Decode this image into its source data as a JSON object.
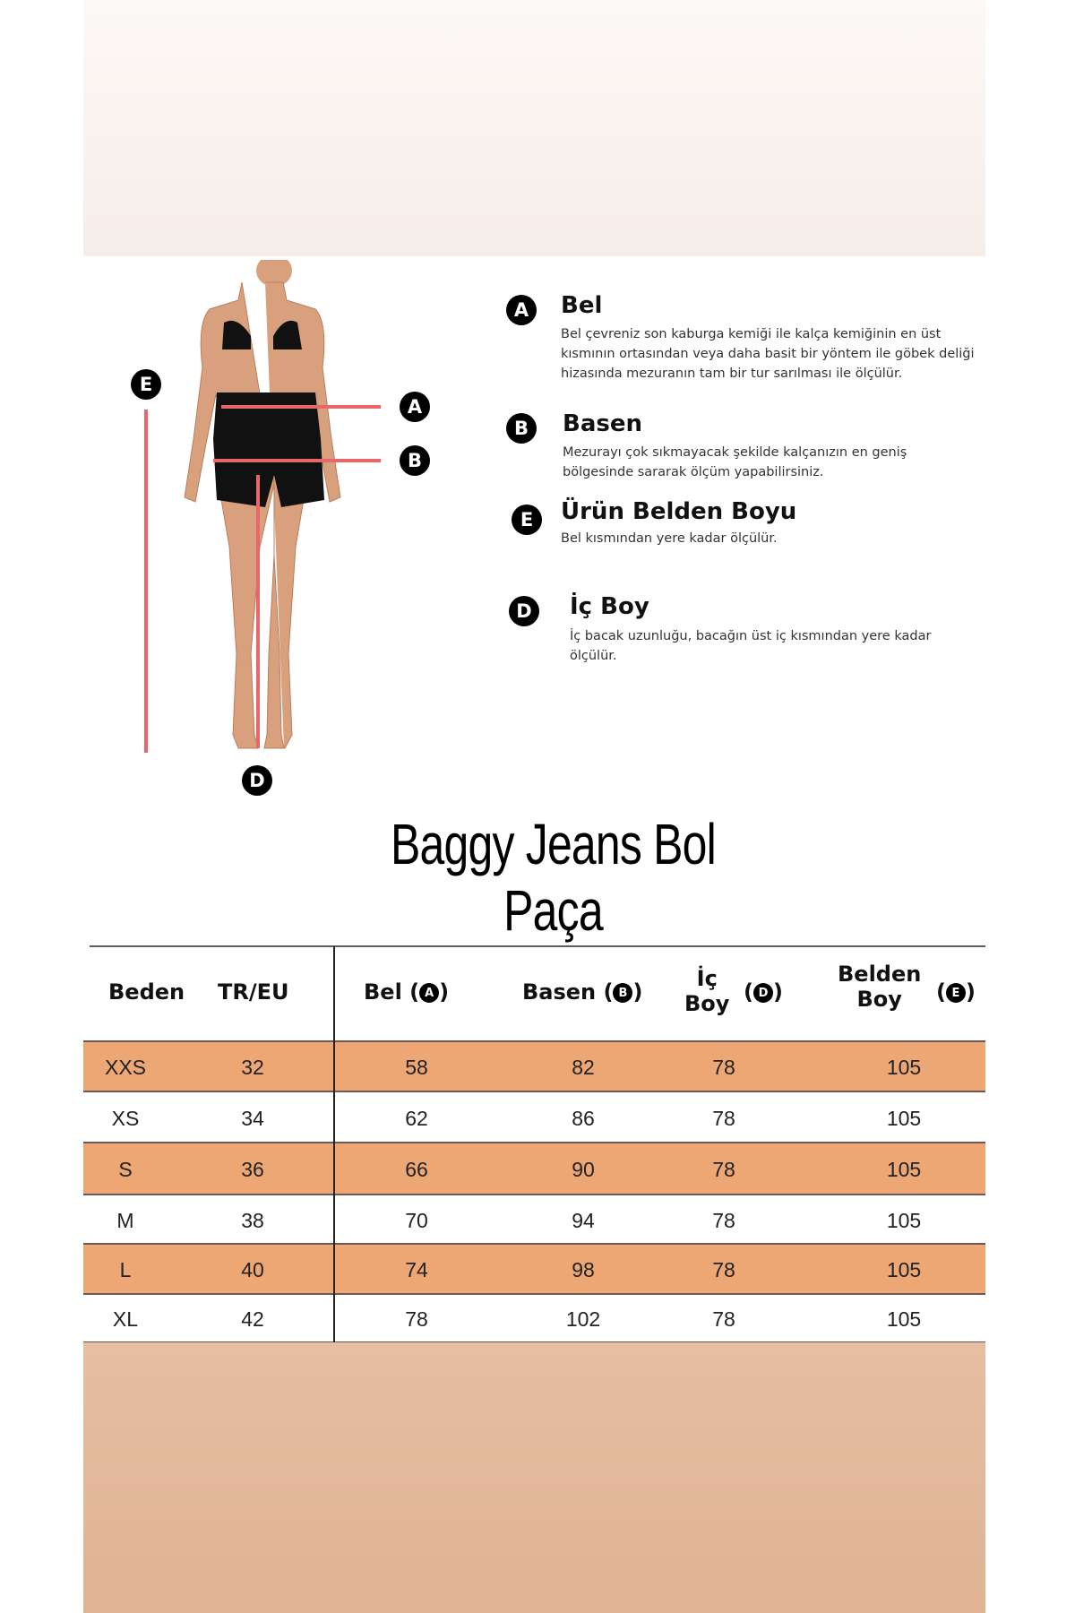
{
  "guide": {
    "items": [
      {
        "badge": "A",
        "title": "Bel",
        "text": "Bel çevreniz son kaburga kemiği ile kalça kemiğinin en üst kısmının ortasından veya daha basit bir yöntem ile göbek deliği hizasında mezuranın tam bir tur sarılması ile ölçülür."
      },
      {
        "badge": "B",
        "title": "Basen",
        "text": "Mezurayı çok sıkmayacak şekilde kalçanızın en geniş bölgesinde sararak ölçüm yapabilirsiniz."
      },
      {
        "badge": "E",
        "title": "Ürün Belden Boyu",
        "text": "Bel kısmından yere kadar ölçülür."
      },
      {
        "badge": "D",
        "title": "İç Boy",
        "text": "İç bacak uzunluğu, bacağın üst iç kısmından yere kadar ölçülür."
      }
    ],
    "figure_labels": {
      "a": "A",
      "b": "B",
      "d": "D",
      "e": "E"
    },
    "line_color": "#e8676a"
  },
  "title": "Baggy Jeans Bol Paça",
  "table": {
    "headers": {
      "beden": "Beden",
      "treu": "TR/EU",
      "bel": "Bel (",
      "bel_badge": "A",
      "basen": "Basen (",
      "basen_badge": "B",
      "ic_top": "İç",
      "ic_bottom": "Boy",
      "ic_badge": "D",
      "belden_top": "Belden",
      "belden_bottom": "Boy",
      "belden_badge": "E",
      "close": ")"
    },
    "rows": [
      [
        "XXS",
        "32",
        "58",
        "82",
        "78",
        "105"
      ],
      [
        "XS",
        "34",
        "62",
        "86",
        "78",
        "105"
      ],
      [
        "S",
        "36",
        "66",
        "90",
        "78",
        "105"
      ],
      [
        "M",
        "38",
        "70",
        "94",
        "78",
        "105"
      ],
      [
        "L",
        "40",
        "74",
        "98",
        "78",
        "105"
      ],
      [
        "XL",
        "42",
        "78",
        "102",
        "78",
        "105"
      ]
    ],
    "stripe_color": "#eca775"
  }
}
